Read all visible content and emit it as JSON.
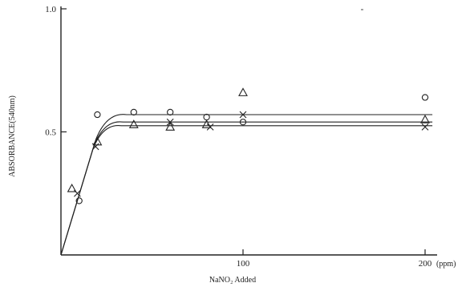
{
  "chart_data": {
    "type": "scatter",
    "xlabel": "NaNO₂ Added",
    "ylabel": "ABSORBANCE(540nm)",
    "x_unit": "(ppm)",
    "xlim": [
      0,
      200
    ],
    "ylim": [
      0,
      1.0
    ],
    "x_ticks": [
      {
        "value": 100,
        "label": "100"
      },
      {
        "value": 200,
        "label": "200"
      }
    ],
    "y_ticks": [
      {
        "value": 0.5,
        "label": "0.5"
      },
      {
        "value": 1.0,
        "label": "1.0"
      }
    ],
    "grid": false,
    "series": [
      {
        "marker": "circle",
        "points": [
          [
            10,
            0.22
          ],
          [
            20,
            0.57
          ],
          [
            40,
            0.58
          ],
          [
            60,
            0.58
          ],
          [
            80,
            0.56
          ],
          [
            100,
            0.54
          ],
          [
            200,
            0.64
          ]
        ]
      },
      {
        "marker": "triangle",
        "points": [
          [
            6,
            0.27
          ],
          [
            20,
            0.46
          ],
          [
            40,
            0.53
          ],
          [
            60,
            0.52
          ],
          [
            80,
            0.53
          ],
          [
            100,
            0.66
          ],
          [
            200,
            0.55
          ]
        ]
      },
      {
        "marker": "cross",
        "points": [
          [
            9,
            0.25
          ],
          [
            19,
            0.44
          ],
          [
            60,
            0.54
          ],
          [
            82,
            0.52
          ],
          [
            100,
            0.57
          ],
          [
            200,
            0.52
          ]
        ]
      }
    ],
    "fit_curves": [
      {
        "plateau": 0.57
      },
      {
        "plateau": 0.54
      },
      {
        "plateau": 0.525
      }
    ]
  }
}
